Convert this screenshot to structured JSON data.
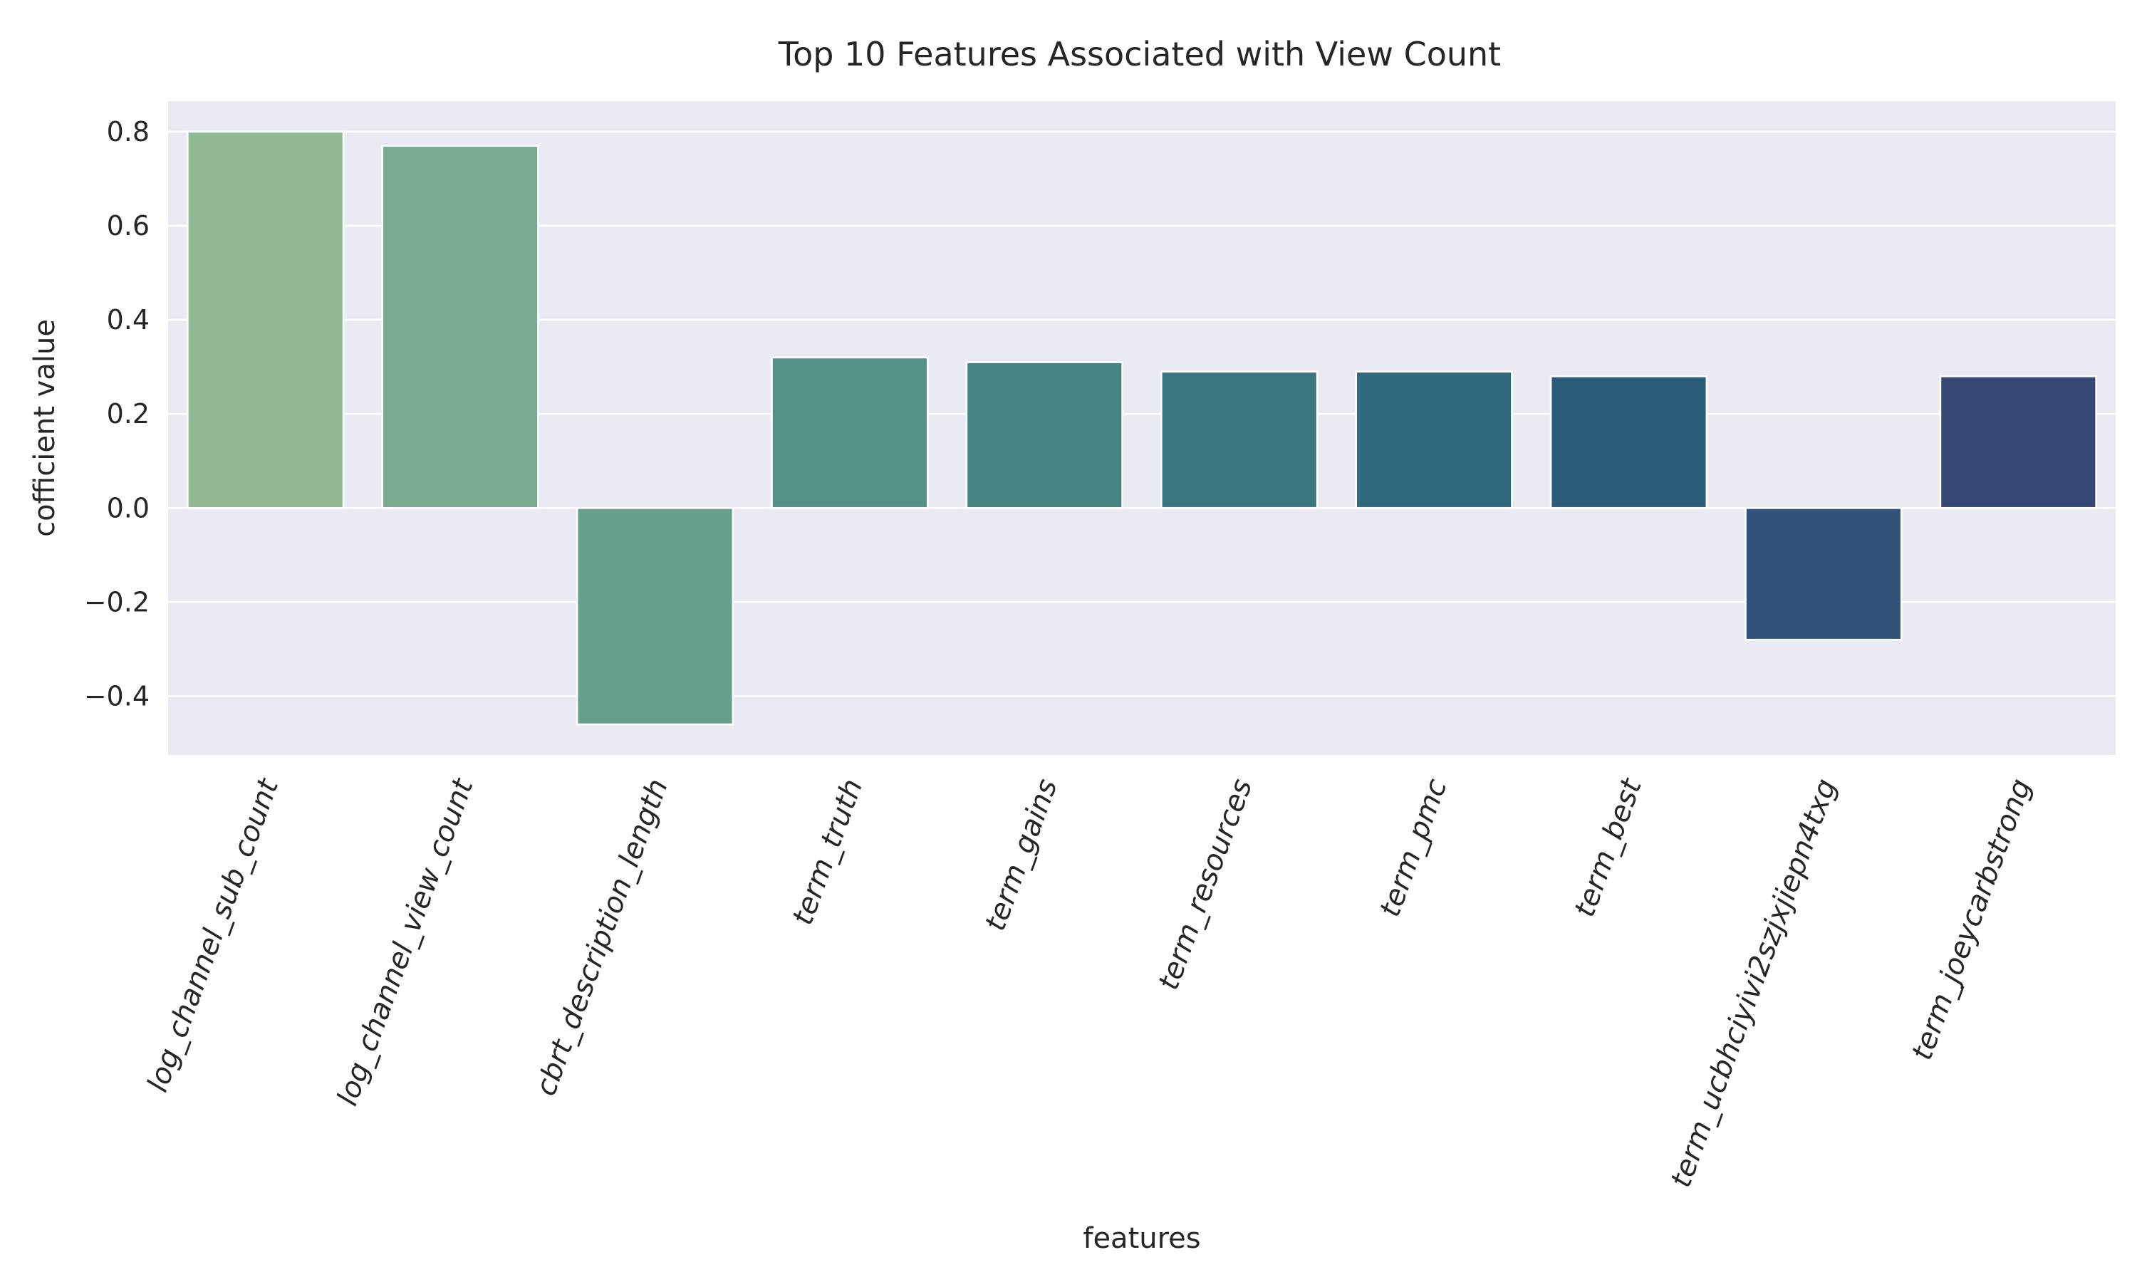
{
  "chart_data": {
    "type": "bar",
    "title": "Top 10 Features Associated with View Count",
    "xlabel": "features",
    "ylabel": "cofficient value",
    "categories": [
      "log_channel_sub_count",
      "log_channel_view_count",
      "cbrt_description_length",
      "term_truth",
      "term_gains",
      "term_resources",
      "term_pmc",
      "term_best",
      "term_ucbhciyivi2szjxjiepn4txg",
      "term_joeycarbstrong"
    ],
    "values": [
      0.8,
      0.77,
      -0.46,
      0.32,
      0.31,
      0.29,
      0.29,
      0.28,
      -0.28,
      0.28
    ],
    "bar_colors": [
      "#91b993",
      "#7aaa91",
      "#66a08c",
      "#539088",
      "#468383",
      "#3a767f",
      "#2f6a7e",
      "#2b5d7a",
      "#30537b",
      "#354673"
    ],
    "yticks": [
      -0.4,
      -0.2,
      0.0,
      0.2,
      0.4,
      0.6,
      0.8
    ],
    "ytick_labels": [
      "−0.4",
      "−0.2",
      "0.0",
      "0.2",
      "0.4",
      "0.6",
      "0.8"
    ],
    "ylim": [
      -0.525,
      0.865
    ],
    "grid": true,
    "legend": "none",
    "background": "#eaeaf2",
    "grid_color": "#ffffff"
  }
}
